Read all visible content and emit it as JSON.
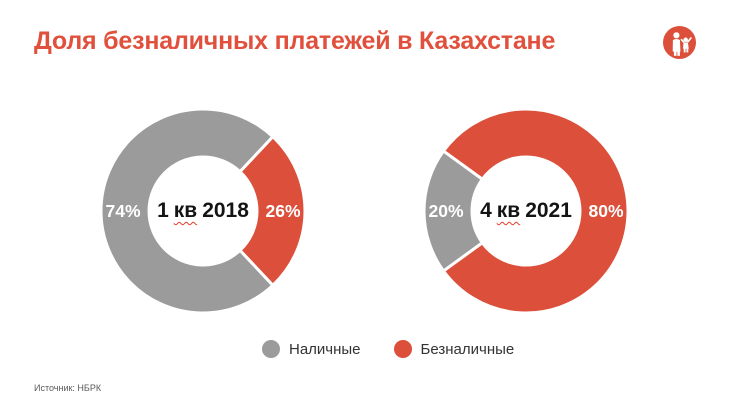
{
  "page": {
    "title": "Доля безналичных платежей в Казахстане",
    "source": "Источник: НБРК"
  },
  "colors": {
    "title_red": "#E0503C",
    "cashless_red": "#DB4F3B",
    "cash_gray": "#9B9B9B",
    "spellcheck_squiggle": "#E8392B",
    "background": "#FFFFFF"
  },
  "logo": {
    "icon": "adult-and-child-logo-icon",
    "circle_color": "#DB4F3B"
  },
  "legend": {
    "items": [
      {
        "label": "Наличные",
        "color": "#9B9B9B"
      },
      {
        "label": "Безналичные",
        "color": "#DB4F3B"
      }
    ]
  },
  "chart_data": [
    {
      "type": "pie",
      "subtype": "donut",
      "center_label": {
        "pre": "1",
        "word": "кв",
        "post": "2018",
        "full": "1 кв 2018"
      },
      "slices": [
        {
          "label": "Наличные",
          "value": 74,
          "percent_label": "74%",
          "color": "#9B9B9B",
          "label_angle_deg": 270
        },
        {
          "label": "Безналичные",
          "value": 26,
          "percent_label": "26%",
          "color": "#DB4F3B",
          "label_angle_deg": 90
        }
      ],
      "cashless_centered_at_deg": 90
    },
    {
      "type": "pie",
      "subtype": "donut",
      "center_label": {
        "pre": "4",
        "word": "кв",
        "post": "2021",
        "full": "4 кв 2021"
      },
      "slices": [
        {
          "label": "Наличные",
          "value": 20,
          "percent_label": "20%",
          "color": "#9B9B9B",
          "label_angle_deg": 270
        },
        {
          "label": "Безналичные",
          "value": 80,
          "percent_label": "80%",
          "color": "#DB4F3B",
          "label_angle_deg": 90
        }
      ],
      "cashless_centered_at_deg": 90
    }
  ]
}
